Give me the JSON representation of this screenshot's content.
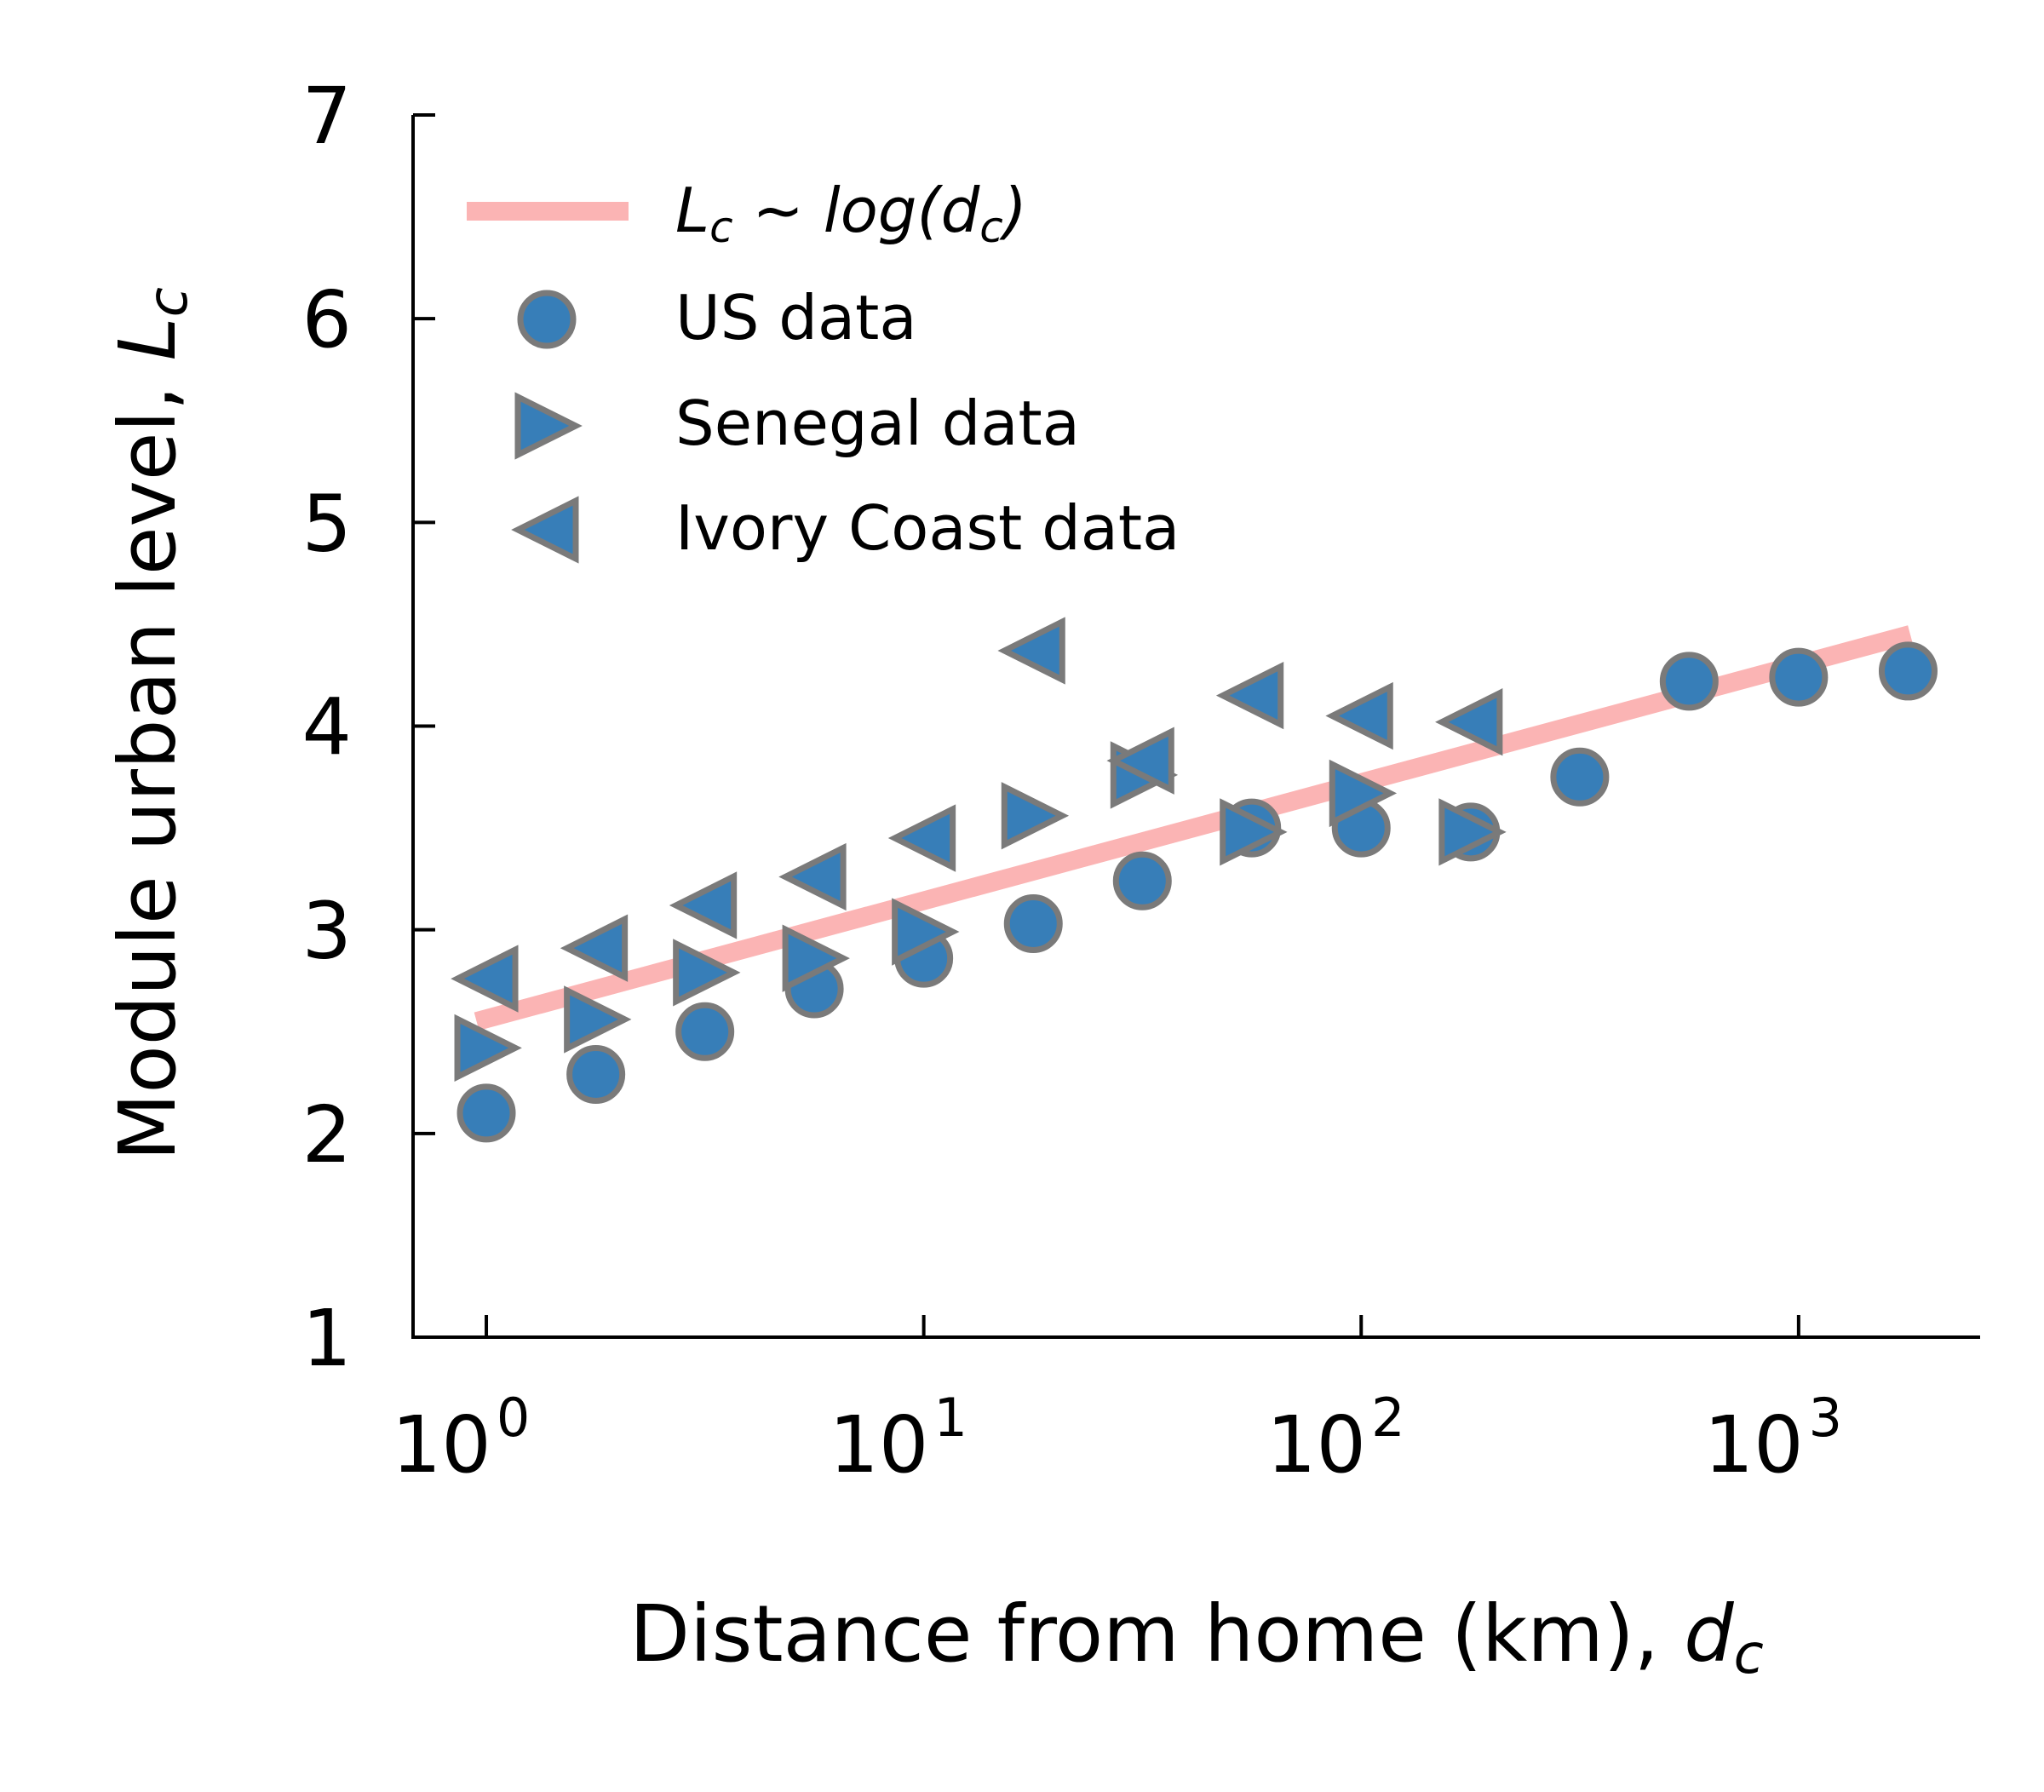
{
  "chart_data": {
    "type": "scatter",
    "x_scale": "log",
    "xlabel": "Distance from home (km), ",
    "xlabel_var": "d",
    "xlabel_sub": "c",
    "ylabel": "Module urban level, ",
    "ylabel_var": "L",
    "ylabel_sub": "c",
    "xlim": [
      0.68,
      2600
    ],
    "ylim": [
      1,
      7
    ],
    "x_ticks": [
      {
        "value": 1,
        "base": "10",
        "exp": "0"
      },
      {
        "value": 10,
        "base": "10",
        "exp": "1"
      },
      {
        "value": 100,
        "base": "10",
        "exp": "2"
      },
      {
        "value": 1000,
        "base": "10",
        "exp": "3"
      }
    ],
    "y_ticks": [
      1,
      2,
      3,
      4,
      5,
      6,
      7
    ],
    "grid": false,
    "legend_position": "top-left",
    "fit": {
      "label_L": "L",
      "label_sub1": "c",
      "label_mid": " ~ log(",
      "label_d": "d",
      "label_sub2": "c",
      "label_end": ")",
      "x": [
        0.95,
        1800
      ],
      "y": [
        2.55,
        4.45
      ],
      "color": "#fbb4b4"
    },
    "series": [
      {
        "name": "US data",
        "marker": "circle",
        "color": "#377eb8",
        "edge": "#7a7a7a",
        "x": [
          1.0,
          1.78,
          3.16,
          5.62,
          10.0,
          17.8,
          31.6,
          56.2,
          100,
          178,
          316,
          562,
          1000,
          1780
        ],
        "y": [
          2.1,
          2.29,
          2.5,
          2.71,
          2.86,
          3.03,
          3.24,
          3.5,
          3.5,
          3.48,
          3.75,
          4.22,
          4.24,
          4.27
        ]
      },
      {
        "name": "Senegal data",
        "marker": "triangle-right",
        "color": "#377eb8",
        "edge": "#7a7a7a",
        "x": [
          1.0,
          1.78,
          3.16,
          5.62,
          10.0,
          17.8,
          31.6,
          56.2,
          100,
          178
        ],
        "y": [
          2.42,
          2.56,
          2.79,
          2.86,
          2.99,
          3.56,
          3.76,
          3.48,
          3.67,
          3.48
        ]
      },
      {
        "name": "Ivory Coast data",
        "marker": "triangle-left",
        "color": "#377eb8",
        "edge": "#7a7a7a",
        "x": [
          1.0,
          1.78,
          3.16,
          5.62,
          10.0,
          17.8,
          31.6,
          56.2,
          100,
          178
        ],
        "y": [
          2.76,
          2.91,
          3.12,
          3.26,
          3.45,
          4.37,
          3.83,
          4.15,
          4.05,
          4.02
        ]
      }
    ]
  }
}
